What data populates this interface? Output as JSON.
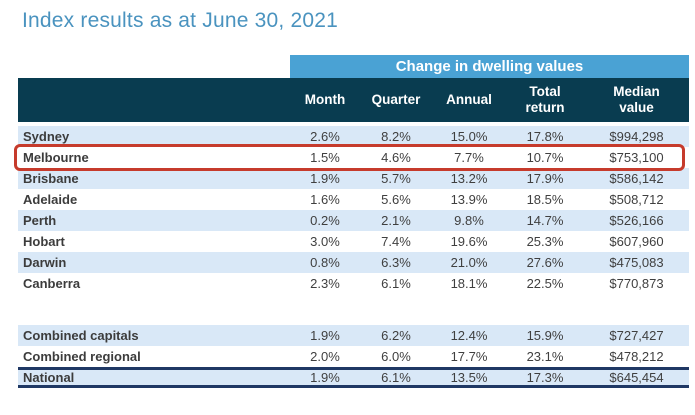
{
  "title": "Index results as at June 30, 2021",
  "colors": {
    "title_blue": "#4a93bf",
    "band_blue": "#4aa2d4",
    "header_dark": "#093c50",
    "row_light": "#d9e8f7",
    "highlight_red": "#c63b2c",
    "line_navy": "#1f3864"
  },
  "table": {
    "group_header": "Change in dwelling values",
    "col_headers": [
      "Month",
      "Quarter",
      "Annual",
      "Total return",
      "Median value"
    ],
    "rows": [
      {
        "label": "Sydney",
        "month": "2.6%",
        "quarter": "8.2%",
        "annual": "15.0%",
        "total": "17.8%",
        "median": "$994,298"
      },
      {
        "label": "Melbourne",
        "month": "1.5%",
        "quarter": "4.6%",
        "annual": "7.7%",
        "total": "10.7%",
        "median": "$753,100"
      },
      {
        "label": "Brisbane",
        "month": "1.9%",
        "quarter": "5.7%",
        "annual": "13.2%",
        "total": "17.9%",
        "median": "$586,142"
      },
      {
        "label": "Adelaide",
        "month": "1.6%",
        "quarter": "5.6%",
        "annual": "13.9%",
        "total": "18.5%",
        "median": "$508,712"
      },
      {
        "label": "Perth",
        "month": "0.2%",
        "quarter": "2.1%",
        "annual": "9.8%",
        "total": "14.7%",
        "median": "$526,166"
      },
      {
        "label": "Hobart",
        "month": "3.0%",
        "quarter": "7.4%",
        "annual": "19.6%",
        "total": "25.3%",
        "median": "$607,960"
      },
      {
        "label": "Darwin",
        "month": "0.8%",
        "quarter": "6.3%",
        "annual": "21.0%",
        "total": "27.6%",
        "median": "$475,083"
      },
      {
        "label": "Canberra",
        "month": "2.3%",
        "quarter": "6.1%",
        "annual": "18.1%",
        "total": "22.5%",
        "median": "$770,873"
      }
    ],
    "summary_rows": [
      {
        "label": "Combined capitals",
        "month": "1.9%",
        "quarter": "6.2%",
        "annual": "12.4%",
        "total": "15.9%",
        "median": "$727,427"
      },
      {
        "label": "Combined regional",
        "month": "2.0%",
        "quarter": "6.0%",
        "annual": "17.7%",
        "total": "23.1%",
        "median": "$478,212"
      },
      {
        "label": "National",
        "month": "1.9%",
        "quarter": "6.1%",
        "annual": "13.5%",
        "total": "17.3%",
        "median": "$645,454"
      }
    ],
    "highlighted_row": "Melbourne"
  }
}
